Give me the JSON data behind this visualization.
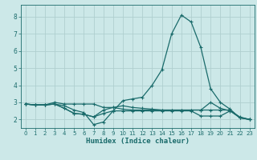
{
  "xlabel": "Humidex (Indice chaleur)",
  "background_color": "#cce8e8",
  "grid_color": "#b0cfcf",
  "line_color": "#1a6b6b",
  "xlim": [
    -0.5,
    23.5
  ],
  "ylim": [
    1.5,
    8.7
  ],
  "yticks": [
    2,
    3,
    4,
    5,
    6,
    7,
    8
  ],
  "xticks": [
    0,
    1,
    2,
    3,
    4,
    5,
    6,
    7,
    8,
    9,
    10,
    11,
    12,
    13,
    14,
    15,
    16,
    17,
    18,
    19,
    20,
    21,
    22,
    23
  ],
  "line1_x": [
    0,
    1,
    2,
    3,
    4,
    5,
    6,
    7,
    8,
    9,
    10,
    11,
    12,
    13,
    14,
    15,
    16,
    17,
    18,
    19,
    20,
    21,
    22,
    23
  ],
  "line1_y": [
    2.9,
    2.85,
    2.85,
    2.9,
    2.8,
    2.55,
    2.4,
    1.7,
    1.85,
    2.5,
    3.1,
    3.2,
    3.3,
    4.0,
    4.9,
    7.0,
    8.1,
    7.7,
    6.2,
    3.8,
    3.0,
    2.6,
    2.1,
    2.0
  ],
  "line2_x": [
    0,
    1,
    2,
    3,
    4,
    5,
    6,
    7,
    8,
    9,
    10,
    11,
    12,
    13,
    14,
    15,
    16,
    17,
    18,
    19,
    20,
    21,
    22,
    23
  ],
  "line2_y": [
    2.9,
    2.85,
    2.85,
    2.9,
    2.65,
    2.35,
    2.3,
    2.15,
    2.55,
    2.7,
    2.8,
    2.7,
    2.65,
    2.6,
    2.55,
    2.55,
    2.55,
    2.55,
    2.55,
    2.55,
    2.55,
    2.55,
    2.1,
    2.0
  ],
  "line3_x": [
    0,
    1,
    2,
    3,
    4,
    5,
    6,
    7,
    8,
    9,
    10,
    11,
    12,
    13,
    14,
    15,
    16,
    17,
    18,
    19,
    20,
    21,
    22,
    23
  ],
  "line3_y": [
    2.9,
    2.85,
    2.85,
    2.9,
    2.65,
    2.35,
    2.3,
    2.15,
    2.35,
    2.5,
    2.5,
    2.5,
    2.5,
    2.5,
    2.5,
    2.5,
    2.5,
    2.5,
    2.2,
    2.2,
    2.2,
    2.5,
    2.1,
    2.0
  ],
  "line4_x": [
    0,
    1,
    2,
    3,
    4,
    5,
    6,
    7,
    8,
    9,
    10,
    11,
    12,
    13,
    14,
    15,
    16,
    17,
    18,
    19,
    20,
    21,
    22,
    23
  ],
  "line4_y": [
    2.9,
    2.85,
    2.85,
    3.0,
    2.9,
    2.9,
    2.9,
    2.9,
    2.7,
    2.7,
    2.6,
    2.55,
    2.55,
    2.55,
    2.55,
    2.55,
    2.55,
    2.55,
    2.55,
    3.0,
    2.65,
    2.5,
    2.15,
    2.0
  ]
}
